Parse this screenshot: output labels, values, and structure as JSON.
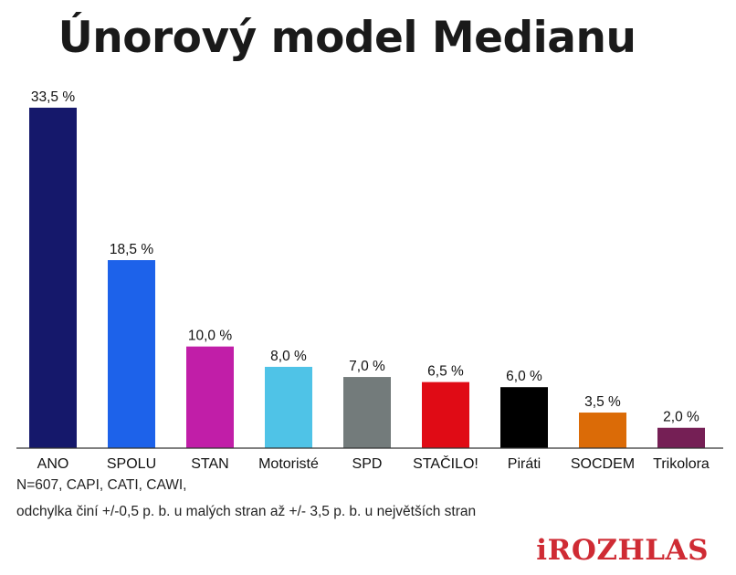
{
  "chart_data": {
    "type": "bar",
    "title": "Únorový model Medianu",
    "categories": [
      "ANO",
      "SPOLU",
      "STAN",
      "Motoristé",
      "SPD",
      "STAČILO!",
      "Piráti",
      "SOCDEM",
      "Trikolora"
    ],
    "values": [
      33.5,
      18.5,
      10.0,
      8.0,
      7.0,
      6.5,
      6.0,
      3.5,
      2.0
    ],
    "value_labels": [
      "33,5 %",
      "18,5 %",
      "10,0 %",
      "8,0 %",
      "7,0 %",
      "6,5 %",
      "6,0 %",
      "3,5 %",
      "2,0 %"
    ],
    "colors": [
      "#15186b",
      "#1d62ea",
      "#c11ea8",
      "#4fc3e7",
      "#737b7b",
      "#e00b15",
      "#000000",
      "#db6b07",
      "#751f55"
    ],
    "xlabel": "",
    "ylabel": "",
    "ylim": [
      0,
      33.5
    ],
    "grid": false
  },
  "notes": {
    "line1": "N=607, CAPI, CATI, CAWI,",
    "line2": "odchylka činí +/-0,5 p. b. u malých stran až +/- 3,5 p. b. u největších stran"
  },
  "brand": {
    "text": "iROZHLAS",
    "color": "#cf2b34"
  }
}
